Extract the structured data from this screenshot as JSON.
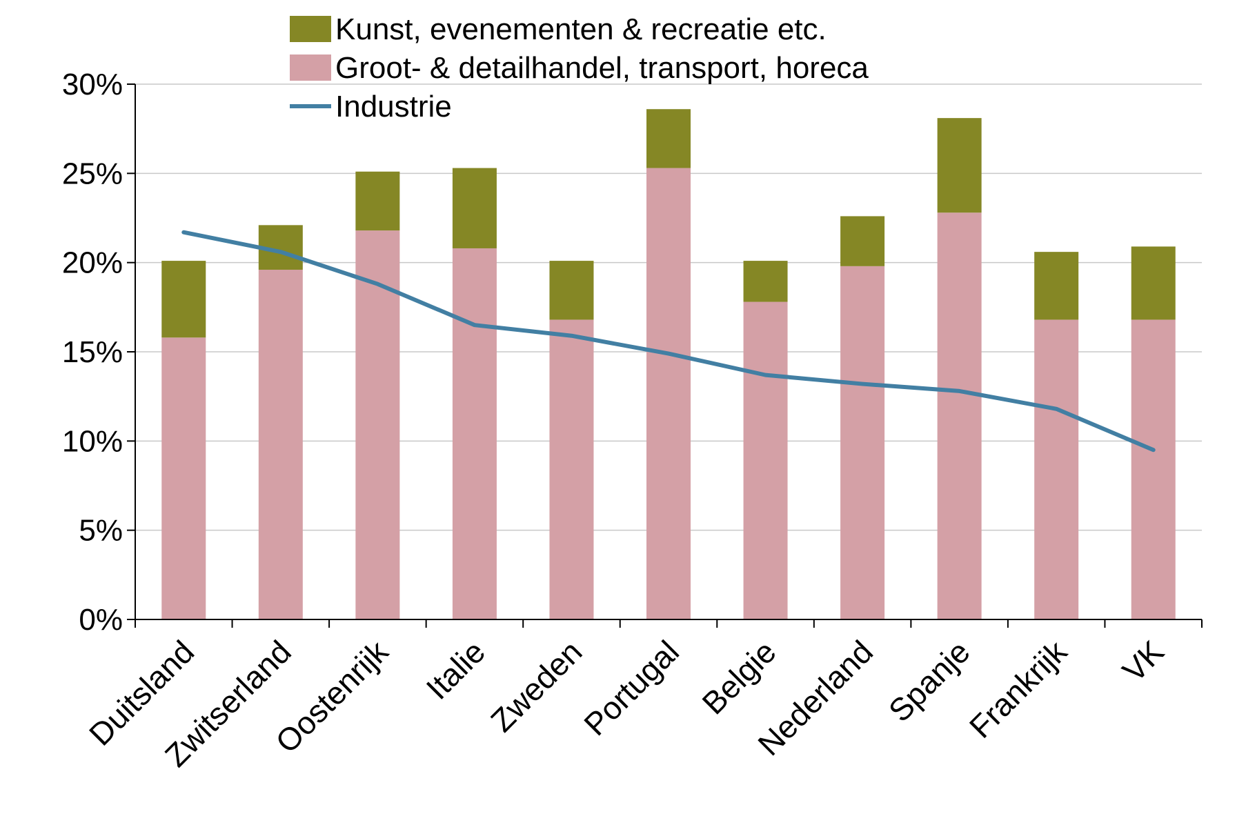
{
  "chart_data": {
    "type": "bar",
    "stacked": true,
    "categories": [
      "Duitsland",
      "Zwitserland",
      "Oostenrijk",
      "Italie",
      "Zweden",
      "Portugal",
      "Belgie",
      "Nederland",
      "Spanje",
      "Frankrijk",
      "VK"
    ],
    "series": [
      {
        "name": "Groot- & detailhandel, transport, horeca",
        "kind": "bar",
        "color": "#d4a0a6",
        "values": [
          15.8,
          19.6,
          21.8,
          20.8,
          16.8,
          25.3,
          17.8,
          19.8,
          22.8,
          16.8,
          16.8
        ]
      },
      {
        "name": "Kunst, evenementen & recreatie etc.",
        "kind": "bar",
        "color": "#858725",
        "values": [
          4.3,
          2.5,
          3.3,
          4.5,
          3.3,
          3.3,
          2.3,
          2.8,
          5.3,
          3.8,
          4.1
        ]
      },
      {
        "name": "Industrie",
        "kind": "line",
        "color": "#427fa3",
        "values": [
          21.7,
          20.6,
          18.8,
          16.5,
          15.9,
          14.9,
          13.7,
          13.2,
          12.8,
          11.8,
          9.5
        ]
      }
    ],
    "y_ticks": [
      "0%",
      "5%",
      "10%",
      "15%",
      "20%",
      "25%",
      "30%"
    ],
    "ylim": [
      0,
      30
    ],
    "grid": true,
    "legend_position": "top",
    "legend_order": [
      1,
      0,
      2
    ]
  }
}
